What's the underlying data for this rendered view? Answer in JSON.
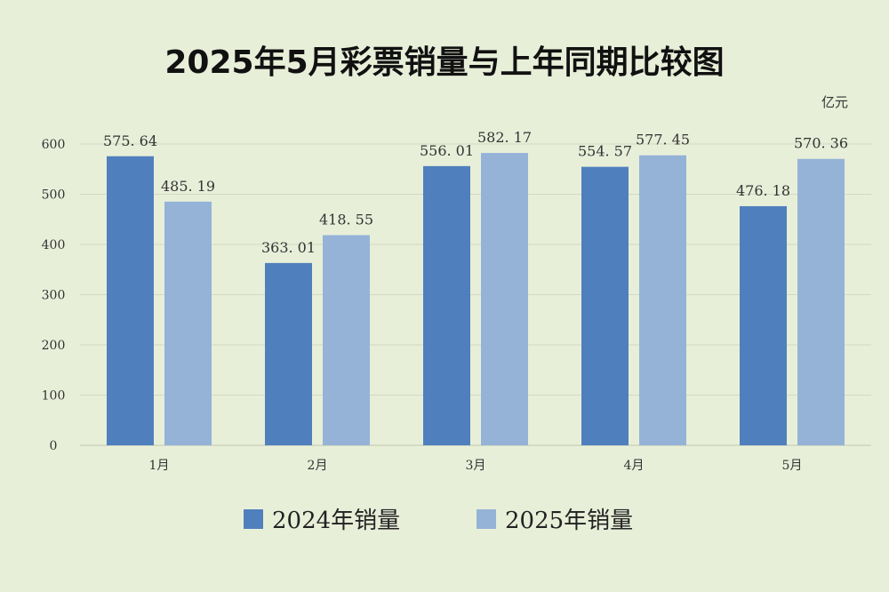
{
  "chart_data": {
    "type": "bar",
    "title": "2025年5月彩票销量与上年同期比较图",
    "unit": "亿元",
    "categories": [
      "1月",
      "2月",
      "3月",
      "4月",
      "5月"
    ],
    "series": [
      {
        "name": "2024年销量",
        "color": "#4f80bd",
        "values": [
          575.64,
          363.01,
          556.01,
          554.57,
          476.18
        ],
        "labels": [
          "575. 64",
          "363. 01",
          "556. 01",
          "554. 57",
          "476. 18"
        ]
      },
      {
        "name": "2025年销量",
        "color": "#95b3d7",
        "values": [
          485.19,
          418.55,
          582.17,
          577.45,
          570.36
        ],
        "labels": [
          "485. 19",
          "418. 55",
          "582. 17",
          "577. 45",
          "570. 36"
        ]
      }
    ],
    "yticks": [
      0,
      100,
      200,
      300,
      400,
      500,
      600
    ],
    "ylim": [
      0,
      600
    ],
    "grid": true,
    "legend_position": "bottom"
  }
}
